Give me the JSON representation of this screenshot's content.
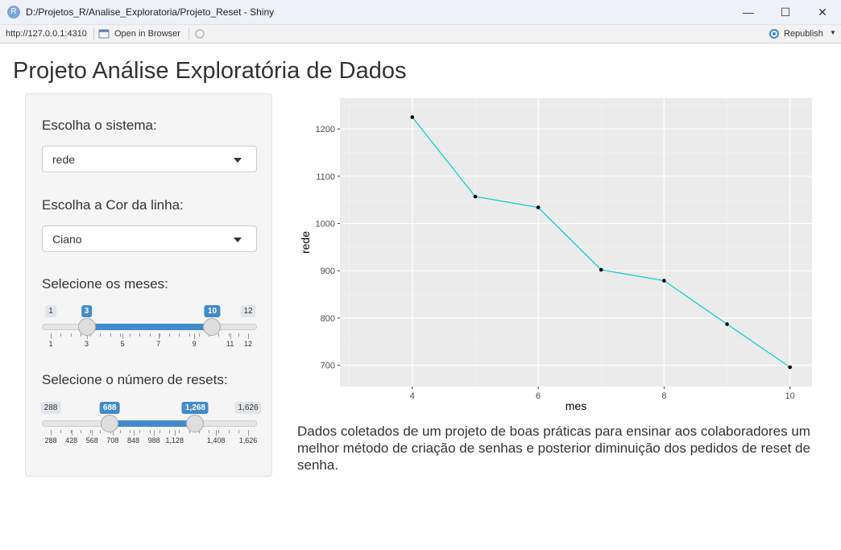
{
  "window": {
    "title": "D:/Projetos_R/Analise_Exploratoria/Projeto_Reset - Shiny",
    "icon": "r-logo-icon",
    "minimize": "—",
    "maximize": "☐",
    "close": "✕"
  },
  "toolbar": {
    "url": "http://127.0.0.1:4310",
    "open_browser": "Open in Browser",
    "republish": "Republish"
  },
  "page": {
    "title": "Projeto Análise Exploratória de Dados",
    "description": "Dados coletados de um projeto de boas práticas para ensinar aos colaboradores um melhor método de criação de senhas e posterior diminuição dos pedidos de reset de senha."
  },
  "inputs": {
    "sistema": {
      "label": "Escolha o sistema:",
      "value": "rede"
    },
    "cor": {
      "label": "Escolha a Cor da linha:",
      "value": "Ciano"
    },
    "meses": {
      "label": "Selecione os meses:",
      "min": 1,
      "max": 12,
      "from": 3,
      "to": 10,
      "min_label": "1",
      "max_label": "12",
      "from_label": "3",
      "to_label": "10",
      "ticks": [
        "1",
        "3",
        "5",
        "7",
        "9",
        "11",
        "12"
      ]
    },
    "resets": {
      "label": "Selecione o número de resets:",
      "min": 288,
      "max": 1626,
      "from": 688,
      "to": 1268,
      "min_label": "288",
      "max_label": "1,626",
      "from_label": "688",
      "to_label": "1,268",
      "ticks": [
        "288",
        "428",
        "568",
        "708",
        "848",
        "988",
        "1,128",
        "1,408",
        "1,626"
      ]
    }
  },
  "chart_data": {
    "type": "line",
    "xlabel": "mes",
    "ylabel": "rede",
    "x": [
      4,
      5,
      6,
      7,
      8,
      9,
      10
    ],
    "y": [
      1225,
      1057,
      1034,
      902,
      879,
      787,
      696
    ],
    "xlim": [
      2.85,
      10.35
    ],
    "ylim": [
      655,
      1265
    ],
    "xticks": [
      4,
      6,
      8,
      10
    ],
    "yticks": [
      700,
      800,
      900,
      1000,
      1100,
      1200
    ],
    "line_color": "#00cccc",
    "point_color": "#000000",
    "panel_background": "#ebebeb",
    "grid": true
  }
}
